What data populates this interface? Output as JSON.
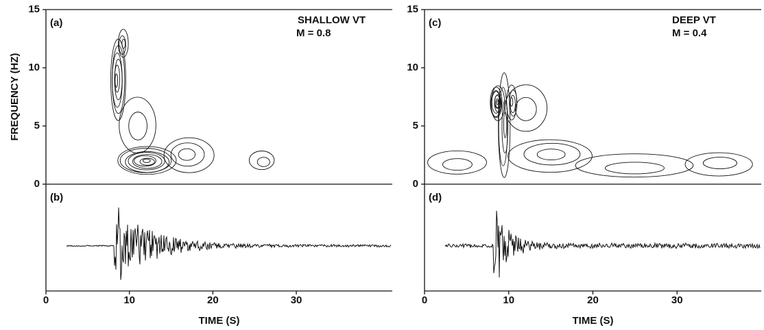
{
  "chart_data": [
    {
      "type": "contour",
      "label": "(a)",
      "ylabel": "FREQUENCY (HZ)",
      "annotations": [
        "SHALLOW VT",
        "M = 0.8"
      ],
      "xlim": [
        0,
        41.5
      ],
      "ylim": [
        0,
        15
      ],
      "yticks": [
        0,
        5,
        10,
        15
      ],
      "color": "#111111"
    },
    {
      "type": "waveform",
      "label": "(b)",
      "xlabel": "TIME (S)",
      "xlim": [
        0,
        41.5
      ],
      "xticks": [
        0,
        10,
        20,
        30
      ],
      "color": "#111111"
    },
    {
      "type": "contour",
      "label": "(c)",
      "annotations": [
        "DEEP VT",
        "M = 0.4"
      ],
      "xlim": [
        0,
        40
      ],
      "ylim": [
        0,
        15
      ],
      "yticks": [
        0,
        5,
        10,
        15
      ],
      "color": "#111111"
    },
    {
      "type": "waveform",
      "label": "(d)",
      "xlabel": "TIME (S)",
      "xlim": [
        0,
        40
      ],
      "xticks": [
        0,
        10,
        20,
        30
      ],
      "color": "#111111"
    }
  ]
}
